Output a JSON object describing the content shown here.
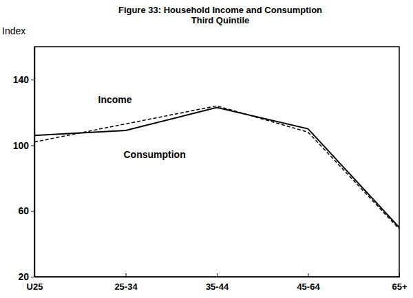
{
  "chart_data": {
    "type": "line",
    "title": "Figure 33: Household Income and Consumption",
    "subtitle": "Third Quintile",
    "y_label": "Index",
    "categories": [
      "U25",
      "25-34",
      "35-44",
      "45-64",
      "65+"
    ],
    "series": [
      {
        "name": "Income",
        "color": "#000000",
        "line_style": "dashed",
        "values": [
          102,
          113,
          124,
          108,
          49
        ]
      },
      {
        "name": "Consumption",
        "color": "#000000",
        "line_style": "solid",
        "values": [
          106,
          109,
          123,
          110,
          50
        ]
      }
    ],
    "ylim": [
      20,
      160
    ],
    "yticks": [
      20,
      60,
      100,
      140
    ]
  }
}
